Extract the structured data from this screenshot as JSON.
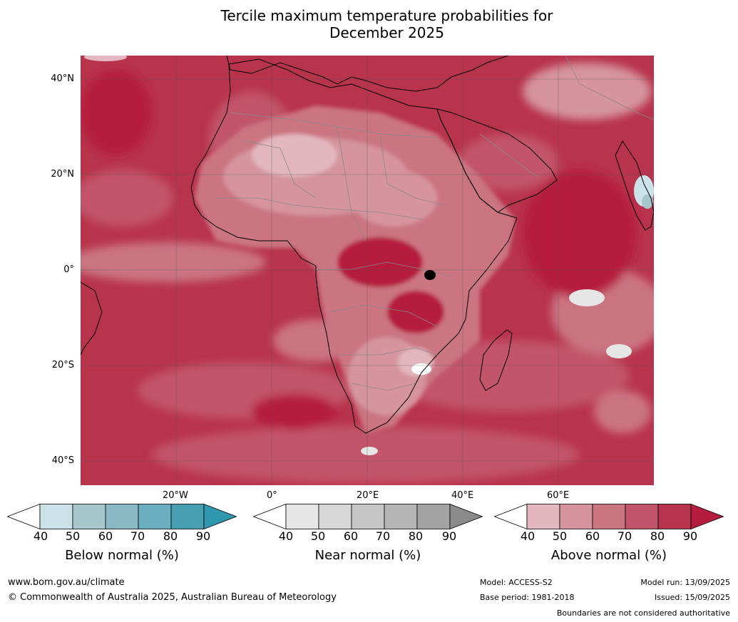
{
  "title_line1": "Tercile maximum temperature probabilities for",
  "title_line2": "December 2025",
  "lat_labels": [
    "40°N",
    "20°N",
    "0°",
    "20°S",
    "40°S"
  ],
  "lon_labels": [
    "20°W",
    "0°",
    "20°E",
    "40°E",
    "60°E"
  ],
  "colorbars": [
    {
      "caption": "Below normal (%)",
      "ticks": [
        "40",
        "50",
        "60",
        "70",
        "80",
        "90"
      ],
      "colors": [
        "#ffffff",
        "#cbe2e8",
        "#a8c7cd",
        "#8ab8c4",
        "#6aaebf",
        "#479fb1",
        "#2f98b0"
      ]
    },
    {
      "caption": "Near normal (%)",
      "ticks": [
        "40",
        "50",
        "60",
        "70",
        "80",
        "90"
      ],
      "colors": [
        "#ffffff",
        "#e6e6e6",
        "#d7d7d7",
        "#c6c6c6",
        "#b5b5b5",
        "#a3a3a3",
        "#8a8a8a"
      ]
    },
    {
      "caption": "Above normal (%)",
      "ticks": [
        "40",
        "50",
        "60",
        "70",
        "80",
        "90"
      ],
      "colors": [
        "#ffffff",
        "#e3b7bf",
        "#d5949e",
        "#cb7581",
        "#c25469",
        "#b8334c",
        "#b51d3e"
      ]
    }
  ],
  "footer": {
    "website": "www.bom.gov.au/climate",
    "copyright": "© Commonwealth of Australia 2025, Australian Bureau of Meteorology",
    "model": "Model: ACCESS-S2",
    "base_period": "Base period: 1981-2018",
    "model_run": "Model run: 13/09/2025",
    "issued": "Issued: 15/09/2025",
    "disclaimer": "Boundaries are not considered authoritative"
  }
}
